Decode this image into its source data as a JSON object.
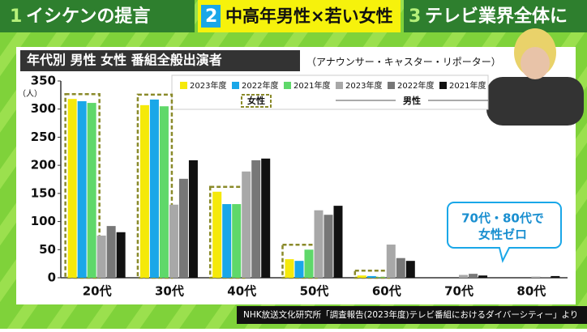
{
  "banner": [
    {
      "number": "1",
      "text": "イシケンの提言"
    },
    {
      "number": "2",
      "text": "中高年男性×若い女性"
    },
    {
      "number": "3",
      "text": "テレビ業界全体に"
    }
  ],
  "chart_data": {
    "type": "bar",
    "title": "年代別 男性 女性 番組全般出演者",
    "subtitle": "（アナウンサー・キャスター・リポーター）",
    "y_label": "（人）",
    "categories": [
      "20代",
      "30代",
      "40代",
      "50代",
      "60代",
      "70代",
      "80代"
    ],
    "series": [
      {
        "name": "2023年度",
        "group": "女性",
        "color": "#f5e90a",
        "values": [
          318,
          307,
          153,
          33,
          4,
          0,
          0
        ]
      },
      {
        "name": "2022年度",
        "group": "女性",
        "color": "#1aa7e8",
        "values": [
          314,
          317,
          131,
          30,
          3,
          0,
          0
        ]
      },
      {
        "name": "2021年度",
        "group": "女性",
        "color": "#5fd86a",
        "values": [
          311,
          305,
          131,
          50,
          1,
          0,
          0
        ]
      },
      {
        "name": "2023年度",
        "group": "男性",
        "color": "#a8a8a8",
        "values": [
          75,
          130,
          189,
          120,
          59,
          5,
          2
        ]
      },
      {
        "name": "2022年度",
        "group": "男性",
        "color": "#777777",
        "values": [
          92,
          176,
          209,
          112,
          35,
          7,
          1
        ]
      },
      {
        "name": "2021年度",
        "group": "男性",
        "color": "#111111",
        "values": [
          81,
          209,
          212,
          128,
          30,
          4,
          3
        ]
      }
    ],
    "ylim": [
      0,
      350
    ],
    "yticks": [
      0,
      50,
      100,
      150,
      200,
      250,
      300,
      350
    ],
    "grid": false,
    "callout": [
      "70代・80代で",
      "女性ゼロ"
    ]
  },
  "source": "NHK放送文化研究所「調査報告(2023年度)テレビ番組におけるダイバーシティー」より"
}
